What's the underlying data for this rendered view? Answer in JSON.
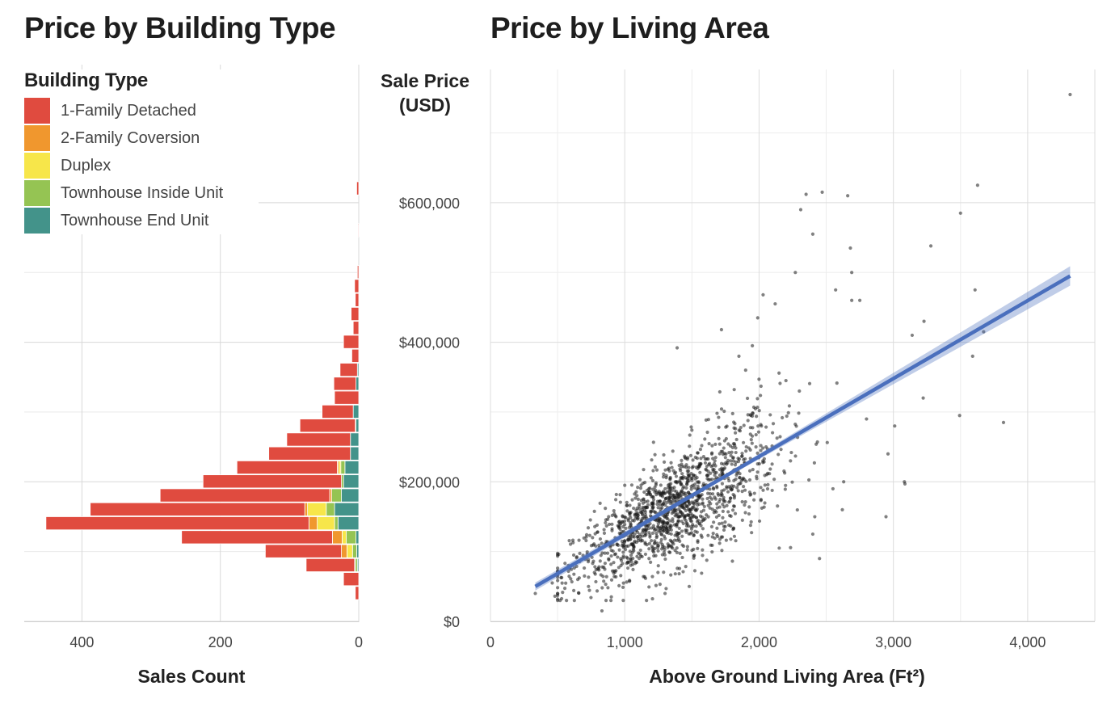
{
  "titles": {
    "left": "Price by Building Type",
    "right": "Price by Living Area"
  },
  "legend": {
    "title": "Building Type",
    "items": [
      {
        "label": "1-Family Detached",
        "color": "#e04b3f"
      },
      {
        "label": "2-Family Coversion",
        "color": "#f0972e"
      },
      {
        "label": "Duplex",
        "color": "#f7e64a"
      },
      {
        "label": "Townhouse Inside Unit",
        "color": "#95c453"
      },
      {
        "label": "Townhouse End Unit",
        "color": "#43938a"
      }
    ]
  },
  "chart_data": [
    {
      "type": "bar",
      "orientation": "horizontal",
      "stacked": true,
      "title": "Price by Building Type",
      "xlabel": "Sales Count",
      "x_reversed": true,
      "xlim": [
        0,
        460
      ],
      "xticks": [
        400,
        200,
        0
      ],
      "ylabel": "Sale Price (USD)",
      "ylim": [
        0,
        755000
      ],
      "bin_width": 20000,
      "grid": true,
      "legend_position": "top-left",
      "series_order": [
        "Townhouse End Unit",
        "Townhouse Inside Unit",
        "Duplex",
        "2-Family Coversion",
        "1-Family Detached"
      ],
      "bins": [
        {
          "price": 40000,
          "counts": [
            0,
            0,
            0,
            0,
            5
          ]
        },
        {
          "price": 60000,
          "counts": [
            0,
            0,
            0,
            0,
            22
          ]
        },
        {
          "price": 80000,
          "counts": [
            2,
            3,
            0,
            1,
            70
          ]
        },
        {
          "price": 100000,
          "counts": [
            3,
            6,
            8,
            8,
            110
          ]
        },
        {
          "price": 120000,
          "counts": [
            4,
            14,
            6,
            14,
            218
          ]
        },
        {
          "price": 140000,
          "counts": [
            30,
            5,
            25,
            12,
            380
          ]
        },
        {
          "price": 160000,
          "counts": [
            35,
            12,
            27,
            4,
            310
          ]
        },
        {
          "price": 180000,
          "counts": [
            25,
            14,
            0,
            3,
            245
          ]
        },
        {
          "price": 200000,
          "counts": [
            22,
            3,
            0,
            0,
            200
          ]
        },
        {
          "price": 220000,
          "counts": [
            20,
            6,
            3,
            2,
            145
          ]
        },
        {
          "price": 240000,
          "counts": [
            12,
            0,
            0,
            0,
            118
          ]
        },
        {
          "price": 260000,
          "counts": [
            12,
            0,
            0,
            0,
            92
          ]
        },
        {
          "price": 280000,
          "counts": [
            4,
            1,
            0,
            0,
            80
          ]
        },
        {
          "price": 300000,
          "counts": [
            8,
            0,
            0,
            0,
            45
          ]
        },
        {
          "price": 320000,
          "counts": [
            0,
            0,
            0,
            0,
            35
          ]
        },
        {
          "price": 340000,
          "counts": [
            4,
            0,
            0,
            0,
            32
          ]
        },
        {
          "price": 360000,
          "counts": [
            2,
            0,
            0,
            0,
            25
          ]
        },
        {
          "price": 380000,
          "counts": [
            0,
            0,
            0,
            0,
            10
          ]
        },
        {
          "price": 400000,
          "counts": [
            0,
            0,
            0,
            0,
            22
          ]
        },
        {
          "price": 420000,
          "counts": [
            0,
            0,
            0,
            0,
            8
          ]
        },
        {
          "price": 440000,
          "counts": [
            0,
            0,
            0,
            0,
            11
          ]
        },
        {
          "price": 460000,
          "counts": [
            0,
            0,
            0,
            0,
            5
          ]
        },
        {
          "price": 480000,
          "counts": [
            0,
            0,
            0,
            0,
            6
          ]
        },
        {
          "price": 500000,
          "counts": [
            0,
            0,
            0,
            0,
            2
          ]
        },
        {
          "price": 560000,
          "counts": [
            0,
            0,
            0,
            0,
            1
          ]
        },
        {
          "price": 620000,
          "counts": [
            0,
            0,
            0,
            0,
            3
          ]
        }
      ]
    },
    {
      "type": "scatter",
      "title": "Price by Living Area",
      "xlabel": "Above Ground Living Area (Ft²)",
      "ylabel": "Sale Price (USD)",
      "xlim": [
        0,
        4500
      ],
      "ylim": [
        0,
        755000
      ],
      "xticks": [
        0,
        1000,
        2000,
        3000,
        4000
      ],
      "xtick_labels": [
        "0",
        "1,000",
        "2,000",
        "3,000",
        "4,000"
      ],
      "yticks": [
        0,
        200000,
        400000,
        600000
      ],
      "ytick_labels": [
        "$0",
        "$200,000",
        "$400,000",
        "$600,000"
      ],
      "grid": true,
      "regression_line": {
        "x": [
          334,
          4316
        ],
        "y": [
          50000,
          495000
        ],
        "color": "#4a6fbd",
        "confidence_band": true
      },
      "points": [
        [
          4316,
          755000
        ],
        [
          3627,
          625000
        ],
        [
          3500,
          585000
        ],
        [
          3279,
          538000
        ],
        [
          3608,
          475000
        ],
        [
          3672,
          415000
        ],
        [
          3228,
          430000
        ],
        [
          3140,
          410000
        ],
        [
          3590,
          380000
        ],
        [
          3493,
          295000
        ],
        [
          3820,
          285000
        ],
        [
          3222,
          320000
        ],
        [
          3082,
          200000
        ],
        [
          3086,
          197000
        ],
        [
          2945,
          150000
        ],
        [
          3010,
          280000
        ],
        [
          2960,
          240000
        ],
        [
          2800,
          290000
        ],
        [
          2350,
          612000
        ],
        [
          2470,
          615000
        ],
        [
          2660,
          610000
        ],
        [
          2310,
          590000
        ],
        [
          2400,
          555000
        ],
        [
          2680,
          535000
        ],
        [
          2690,
          500000
        ],
        [
          2270,
          500000
        ],
        [
          2570,
          475000
        ],
        [
          2690,
          460000
        ],
        [
          2750,
          460000
        ],
        [
          2030,
          468000
        ],
        [
          2120,
          455000
        ],
        [
          1990,
          435000
        ],
        [
          1720,
          418000
        ],
        [
          1390,
          392000
        ],
        [
          1250,
          140000
        ],
        [
          700,
          65000
        ],
        [
          650,
          60000
        ],
        [
          800,
          75000
        ],
        [
          500,
          37000
        ],
        [
          480,
          36000
        ],
        [
          334,
          40000
        ],
        [
          460,
          55000
        ],
        [
          580,
          80000
        ],
        [
          620,
          95000
        ],
        [
          730,
          50000
        ],
        [
          830,
          15000
        ],
        [
          900,
          35000
        ],
        [
          1300,
          40000
        ],
        [
          1480,
          50000
        ],
        [
          2450,
          90000
        ],
        [
          2150,
          105000
        ],
        [
          2400,
          125000
        ],
        [
          2620,
          160000
        ],
        [
          2550,
          190000
        ],
        [
          2630,
          200000
        ],
        [
          1000,
          195000
        ],
        [
          1100,
          175000
        ],
        [
          1060,
          110000
        ],
        [
          880,
          150000
        ],
        [
          760,
          120000
        ],
        [
          1950,
          395000
        ],
        [
          1850,
          380000
        ],
        [
          1900,
          360000
        ],
        [
          2200,
          345000
        ],
        [
          2300,
          330000
        ]
      ],
      "cluster_points_estimated": "~1,400 additional points concentrated between 800–2,000 ft² and $90,000–$250,000"
    }
  ]
}
